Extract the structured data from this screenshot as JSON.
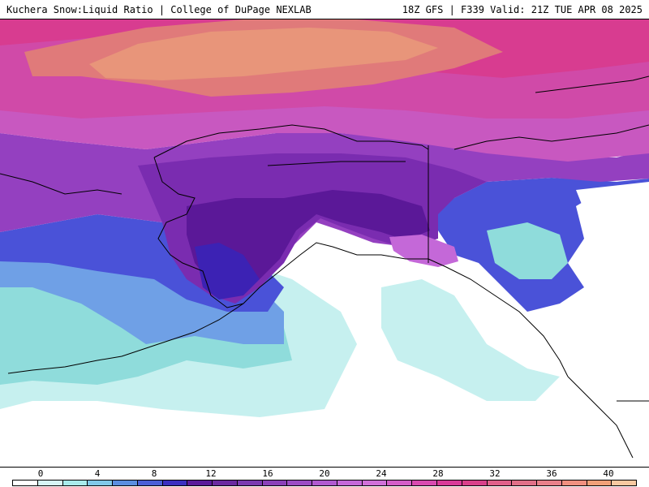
{
  "header": {
    "left": "Kuchera Snow:Liquid Ratio | College of DuPage NEXLAB",
    "right": "18Z GFS | F339 Valid: 21Z TUE APR 08 2025"
  },
  "colorbar": {
    "tick_labels": [
      "0",
      "4",
      "8",
      "12",
      "16",
      "20",
      "24",
      "28",
      "32",
      "36",
      "40"
    ],
    "colors": [
      "#ffffff",
      "#d6f5f5",
      "#a8ebeb",
      "#7fc8e8",
      "#5a8ee0",
      "#4a5fd6",
      "#3b2fc0",
      "#5a1a9a",
      "#6a2aa0",
      "#7a3ab0",
      "#8a40b8",
      "#9a4cc4",
      "#b05ad0",
      "#c468d8",
      "#d070d8",
      "#d45ec8",
      "#d84ab0",
      "#d83a98",
      "#d8408a",
      "#e0608a",
      "#e07088",
      "#e8808a",
      "#f09080",
      "#f0a078",
      "#f8c8a0"
    ]
  },
  "map": {
    "region": "Alaska",
    "colors": {
      "ocean_white": "#ffffff",
      "teal_light": "#c6f0ef",
      "teal": "#8fdcdb",
      "light_blue": "#6fa0e6",
      "blue": "#4a52d8",
      "indigo": "#3c22b4",
      "deep_purple": "#5b1898",
      "purple": "#7a2cb0",
      "violet": "#9440c0",
      "magenta_purple": "#b24ec8",
      "pink_purple": "#c858c0",
      "magenta": "#d04aa8",
      "hot_pink": "#d83c90",
      "salmon": "#e07a7a",
      "peach": "#e8957a",
      "coast_line": "#000000"
    }
  }
}
